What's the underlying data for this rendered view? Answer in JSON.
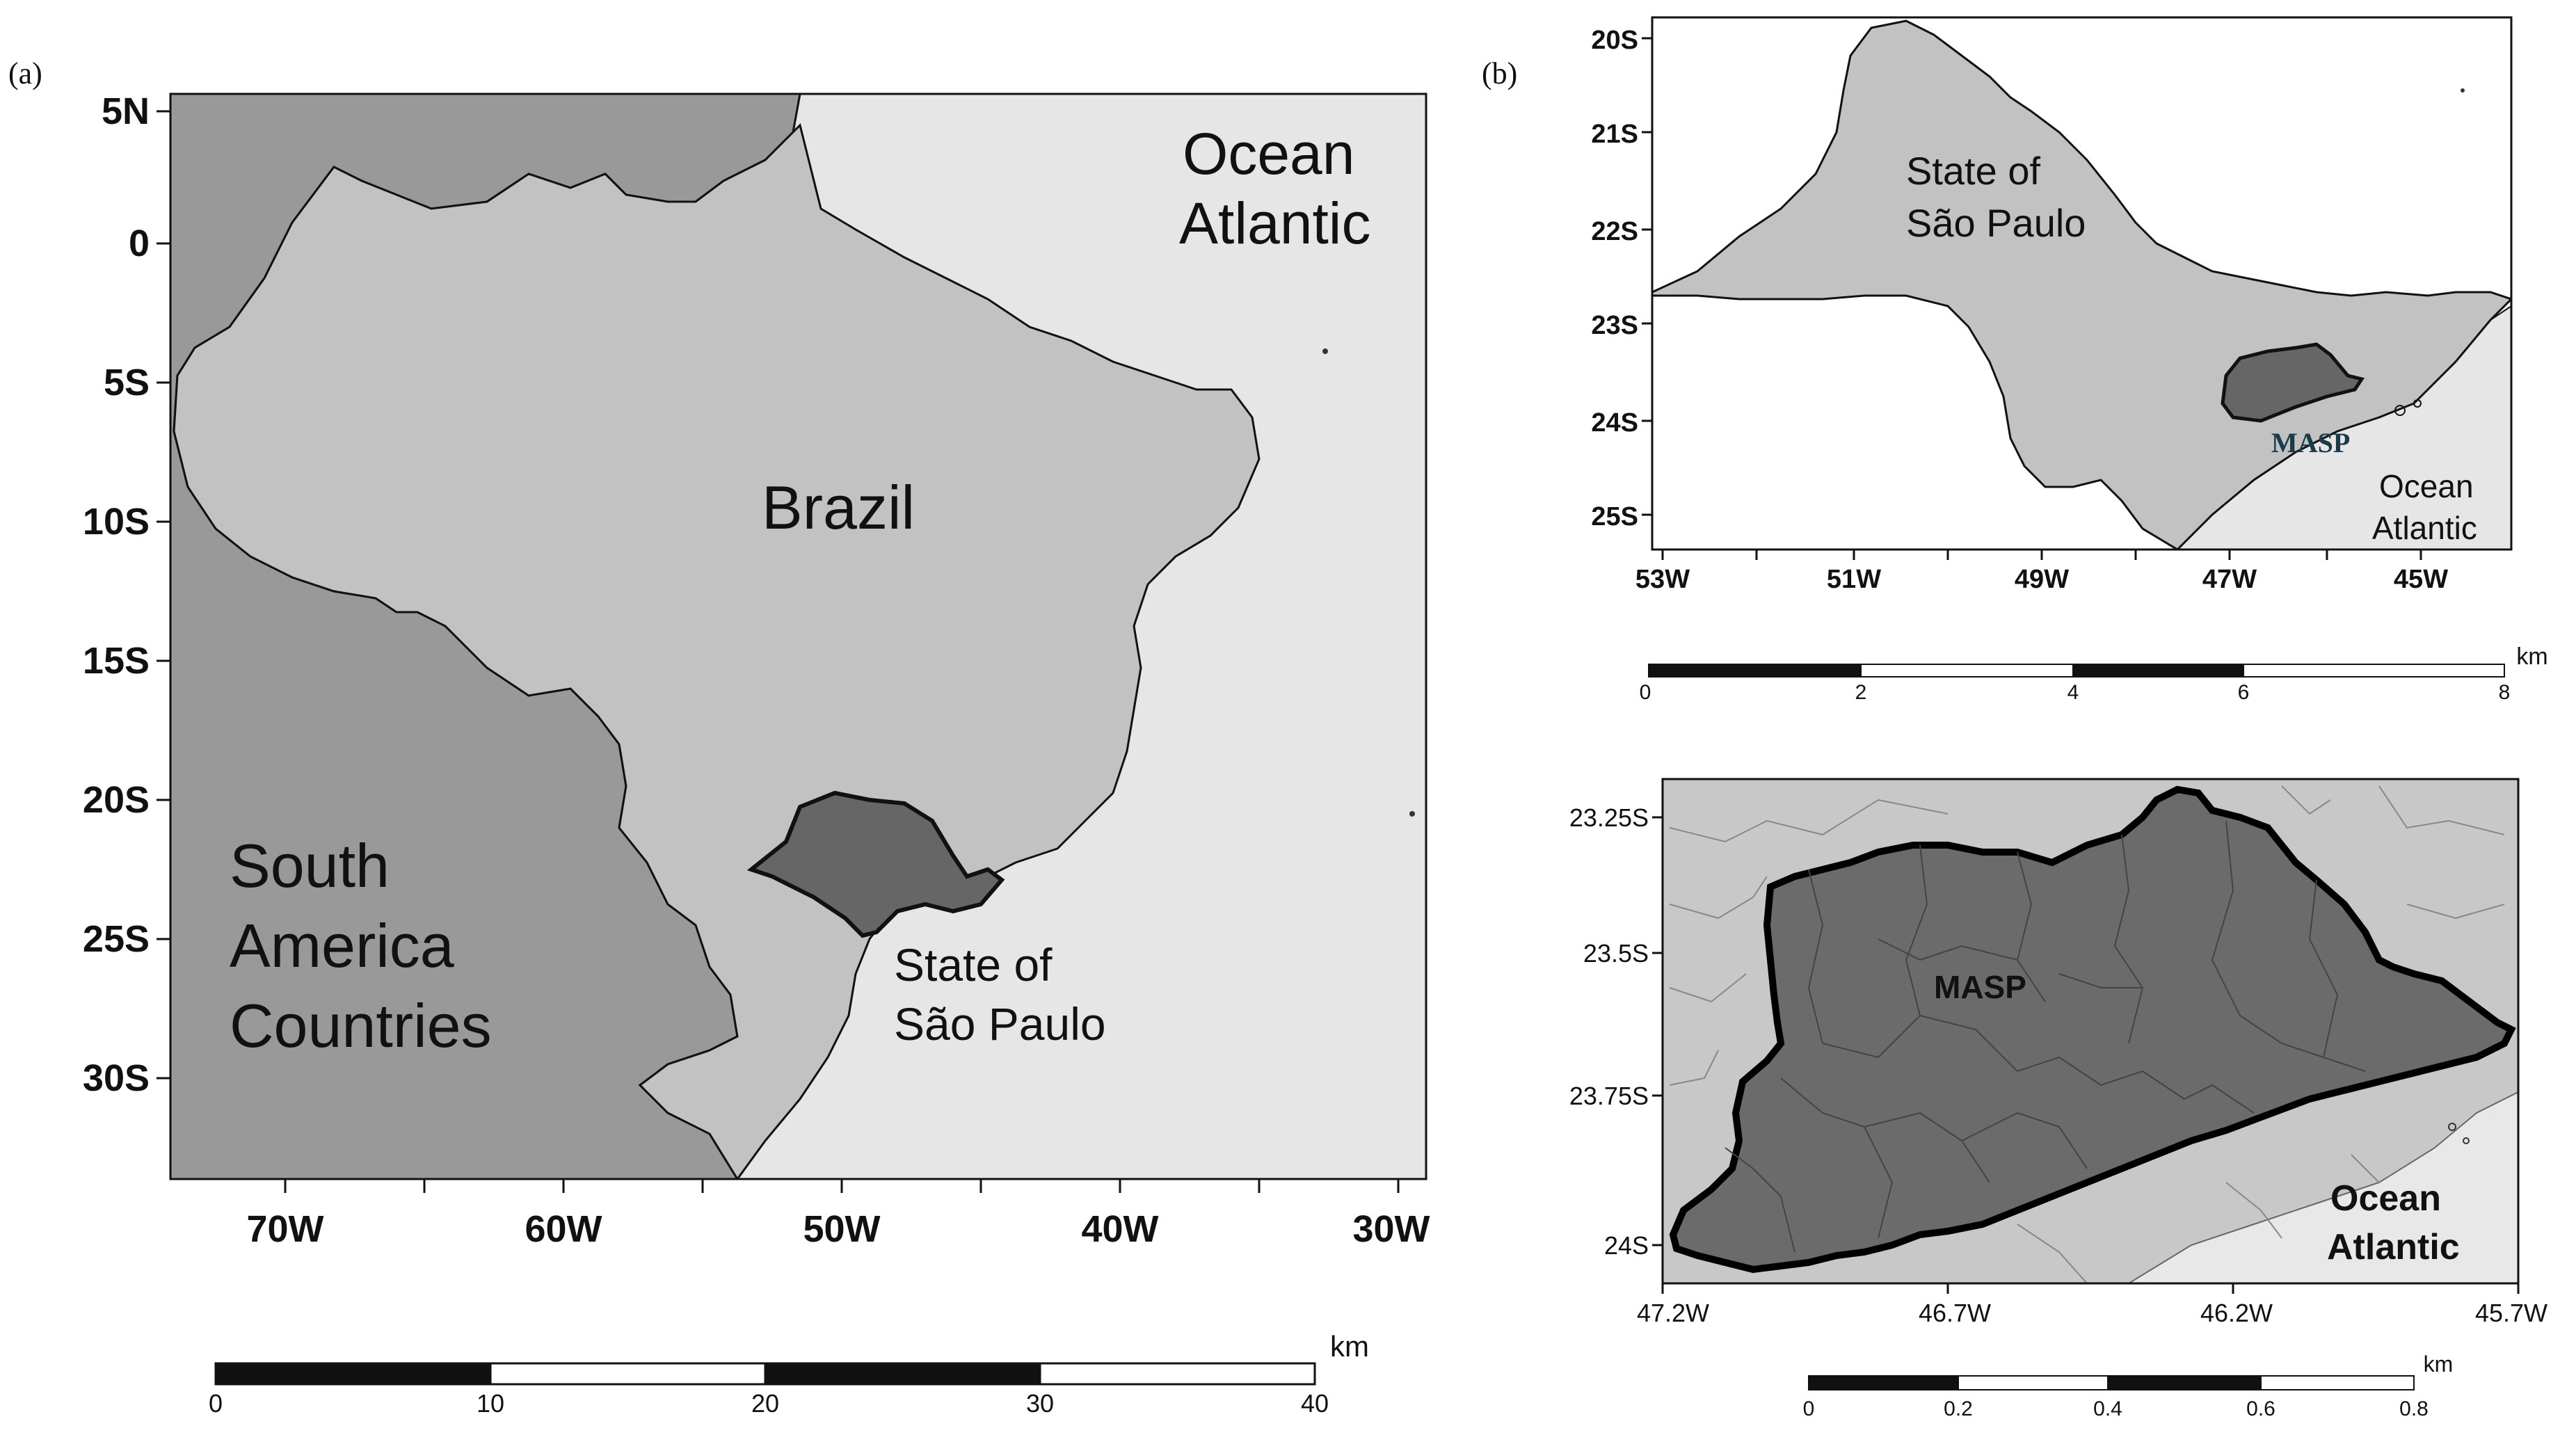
{
  "panel_a": {
    "letter": "(a)",
    "lat_ticks": [
      "5N",
      "0",
      "5S",
      "10S",
      "15S",
      "20S",
      "25S",
      "30S"
    ],
    "lon_ticks": [
      "70W",
      "60W",
      "50W",
      "40W",
      "30W"
    ],
    "labels": {
      "ocean_line1": "Ocean",
      "ocean_line2": "Atlantic",
      "brazil": "Brazil",
      "sa_line1": "South",
      "sa_line2": "America",
      "sa_line3": "Countries",
      "state_line1": "State of",
      "state_line2": "São Paulo"
    },
    "scale": {
      "unit": "km",
      "ticks": [
        "0",
        "10",
        "20",
        "30",
        "40"
      ]
    }
  },
  "panel_b_top": {
    "letter": "(b)",
    "lat_ticks": [
      "20S",
      "21S",
      "22S",
      "23S",
      "24S",
      "25S"
    ],
    "lon_ticks": [
      "53W",
      "51W",
      "49W",
      "47W",
      "45W"
    ],
    "labels": {
      "state_line1": "State of",
      "state_line2": "São Paulo",
      "masp": "MASP",
      "ocean_line1": "Ocean",
      "ocean_line2": "Atlantic"
    },
    "scale": {
      "unit": "km",
      "ticks": [
        "0",
        "2",
        "4",
        "6",
        "8"
      ]
    }
  },
  "panel_b_bottom": {
    "lat_ticks": [
      "23.25S",
      "23.5S",
      "23.75S",
      "24S"
    ],
    "lon_ticks": [
      "47.2W",
      "46.7W",
      "46.2W",
      "45.7W"
    ],
    "labels": {
      "masp": "MASP",
      "ocean_line1": "Ocean",
      "ocean_line2": "Atlantic"
    },
    "scale": {
      "unit": "km",
      "ticks": [
        "0",
        "0.2",
        "0.4",
        "0.6",
        "0.8"
      ]
    }
  },
  "colors": {
    "ocean": "#e6e6e6",
    "brazil": "#c2c2c2",
    "countries": "#999999",
    "state": "#666666",
    "masp_inner": "#6b6b6b"
  }
}
